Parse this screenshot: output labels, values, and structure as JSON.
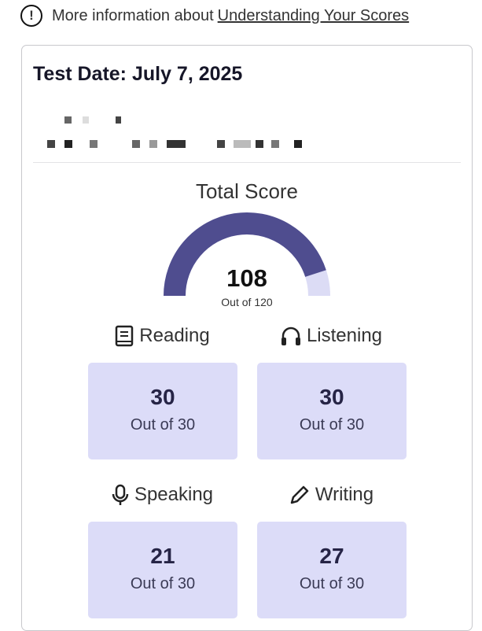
{
  "info": {
    "text": "More information about",
    "link": "Understanding Your Scores",
    "icon": "exclamation-circle-icon"
  },
  "card": {
    "test_date": "Test Date: July 7, 2025"
  },
  "total": {
    "title": "Total Score",
    "score": 108,
    "score_text": "108",
    "out_of": "Out of 120",
    "max": 120,
    "colors": {
      "filled": "#4f4d8f",
      "empty": "#dcdcf5"
    }
  },
  "sections": [
    {
      "label": "Reading",
      "icon": "book-icon",
      "score": "30",
      "out_of": "Out of 30"
    },
    {
      "label": "Listening",
      "icon": "headphones-icon",
      "score": "30",
      "out_of": "Out of 30"
    },
    {
      "label": "Speaking",
      "icon": "microphone-icon",
      "score": "21",
      "out_of": "Out of 30"
    },
    {
      "label": "Writing",
      "icon": "pencil-icon",
      "score": "27",
      "out_of": "Out of 30"
    }
  ]
}
